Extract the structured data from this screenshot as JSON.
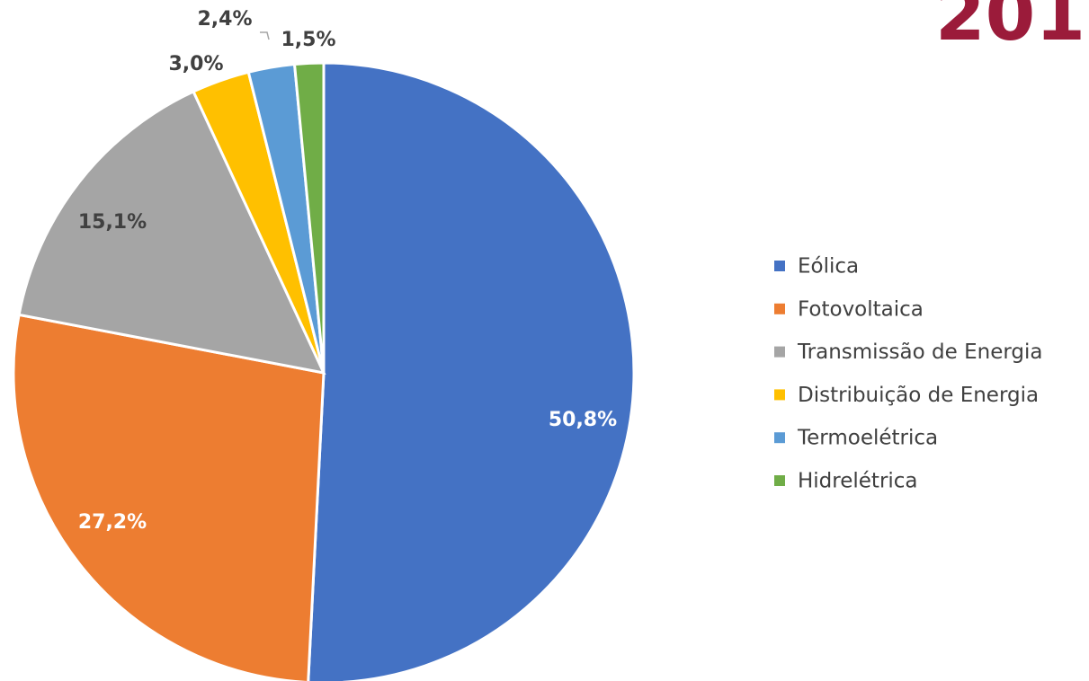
{
  "chart_data": {
    "type": "pie",
    "title": "201",
    "categories": [
      "Eólica",
      "Fotovoltaica",
      "Transmissão de Energia",
      "Distribuição de Energia",
      "Termoelétrica",
      "Hidrelétrica"
    ],
    "values": [
      50.8,
      27.2,
      15.1,
      3.0,
      2.4,
      1.5
    ],
    "value_labels": [
      "50,8%",
      "27,2%",
      "15,1%",
      "3,0%",
      "2,4%",
      "1,5%"
    ],
    "colors": [
      "#4472c4",
      "#ed7d31",
      "#a5a5a5",
      "#ffc000",
      "#5b9bd5",
      "#70ad47"
    ],
    "legend": "right"
  }
}
